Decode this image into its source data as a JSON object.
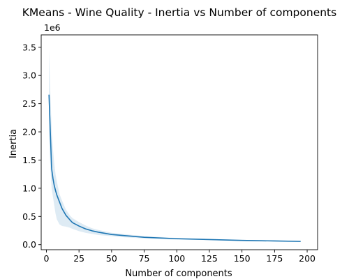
{
  "chart_data": {
    "type": "line",
    "title": "KMeans - Wine Quality - Inertia vs Number of components",
    "xlabel": "Number of components",
    "ylabel": "Inertia",
    "y_offset_label": "1e6",
    "xlim": [
      -4,
      208
    ],
    "ylim": [
      -0.09,
      3.72
    ],
    "x_ticks": [
      0,
      25,
      50,
      75,
      100,
      125,
      150,
      175,
      200
    ],
    "x_tick_labels": [
      "0",
      "25",
      "50",
      "75",
      "100",
      "125",
      "150",
      "175",
      "200"
    ],
    "y_ticks": [
      0.0,
      0.5,
      1.0,
      1.5,
      2.0,
      2.5,
      3.0,
      3.5
    ],
    "y_tick_labels": [
      "0.0",
      "0.5",
      "1.0",
      "1.5",
      "2.0",
      "2.5",
      "3.0",
      "3.5"
    ],
    "grid": false,
    "series": [
      {
        "color": "#1f77b4",
        "band_color": "#1f77b4",
        "x": [
          2,
          3,
          4,
          5,
          6,
          7,
          8,
          10,
          12,
          15,
          18,
          20,
          25,
          30,
          35,
          40,
          45,
          50,
          60,
          75,
          100,
          125,
          150,
          175,
          195
        ],
        "y": [
          2.66,
          2.0,
          1.35,
          1.18,
          1.05,
          0.96,
          0.88,
          0.76,
          0.64,
          0.52,
          0.44,
          0.39,
          0.33,
          0.28,
          0.245,
          0.22,
          0.2,
          0.18,
          0.16,
          0.13,
          0.105,
          0.09,
          0.075,
          0.065,
          0.057
        ],
        "lower": [
          2.0,
          1.4,
          1.0,
          0.85,
          0.7,
          0.55,
          0.45,
          0.36,
          0.33,
          0.32,
          0.3,
          0.28,
          0.24,
          0.21,
          0.19,
          0.17,
          0.16,
          0.15,
          0.13,
          0.11,
          0.09,
          0.08,
          0.066,
          0.057,
          0.05
        ],
        "upper": [
          3.45,
          2.7,
          2.05,
          1.7,
          1.45,
          1.25,
          1.12,
          0.9,
          0.78,
          0.62,
          0.52,
          0.47,
          0.4,
          0.34,
          0.29,
          0.26,
          0.235,
          0.21,
          0.185,
          0.15,
          0.12,
          0.1,
          0.085,
          0.072,
          0.064
        ]
      }
    ]
  }
}
